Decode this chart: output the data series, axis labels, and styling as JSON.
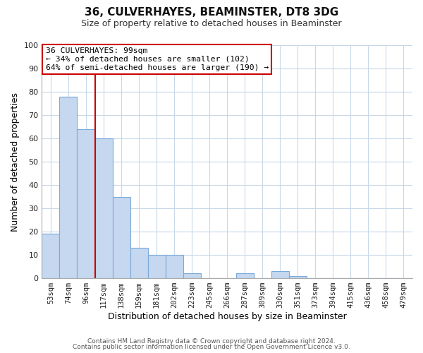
{
  "title": "36, CULVERHAYES, BEAMINSTER, DT8 3DG",
  "subtitle": "Size of property relative to detached houses in Beaminster",
  "xlabel": "Distribution of detached houses by size in Beaminster",
  "ylabel": "Number of detached properties",
  "bar_labels": [
    "53sqm",
    "74sqm",
    "96sqm",
    "117sqm",
    "138sqm",
    "159sqm",
    "181sqm",
    "202sqm",
    "223sqm",
    "245sqm",
    "266sqm",
    "287sqm",
    "309sqm",
    "330sqm",
    "351sqm",
    "373sqm",
    "394sqm",
    "415sqm",
    "436sqm",
    "458sqm",
    "479sqm"
  ],
  "bar_values": [
    19,
    78,
    64,
    60,
    35,
    13,
    10,
    10,
    2,
    0,
    0,
    2,
    0,
    3,
    1,
    0,
    0,
    0,
    0,
    0,
    0
  ],
  "bar_color": "#c5d8ef",
  "bar_edge_color": "#7aaadb",
  "vline_x": 2.5,
  "vline_color": "#cc0000",
  "ylim": [
    0,
    100
  ],
  "annotation_title": "36 CULVERHAYES: 99sqm",
  "annotation_line1": "← 34% of detached houses are smaller (102)",
  "annotation_line2": "64% of semi-detached houses are larger (190) →",
  "footer1": "Contains HM Land Registry data © Crown copyright and database right 2024.",
  "footer2": "Contains public sector information licensed under the Open Government Licence v3.0.",
  "background_color": "#ffffff",
  "grid_color": "#c8d8e8"
}
